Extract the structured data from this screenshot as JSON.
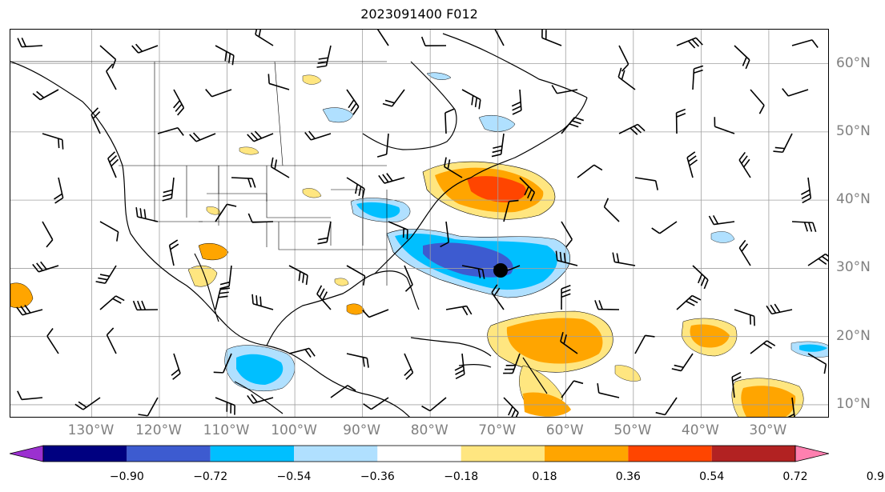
{
  "title": "2023091400 F012",
  "map": {
    "projection": "PlateCarree",
    "lon_range": [
      -142,
      -21
    ],
    "lat_range": [
      8,
      65
    ],
    "lon_ticks": [
      "130°W",
      "120°W",
      "110°W",
      "100°W",
      "90°W",
      "80°W",
      "70°W",
      "60°W",
      "50°W",
      "40°W",
      "30°W"
    ],
    "lat_ticks": [
      "60°N",
      "50°N",
      "40°N",
      "30°N",
      "20°N",
      "10°N"
    ],
    "gridline_color": "#a0a0a0",
    "overlays": [
      "coastlines",
      "country-borders",
      "state-borders",
      "wind-barbs",
      "filled-contours"
    ]
  },
  "colorbar": {
    "orientation": "horizontal",
    "extend": "both",
    "tick_labels": [
      "−0.90",
      "−0.72",
      "−0.54",
      "−0.36",
      "−0.18",
      "0.18",
      "0.36",
      "0.54",
      "0.72",
      "0.90"
    ],
    "colors": [
      "#9b30d0",
      "#000080",
      "#3d5bd0",
      "#00bfff",
      "#b0e0ff",
      "#ffffff",
      "#ffe680",
      "#ffa500",
      "#ff4500",
      "#b22222",
      "#ff80b0"
    ]
  },
  "features": {
    "storm_marker": "tropical-cyclone-center",
    "positive_anomaly_regions": [
      "northeast-us-atlantic",
      "tropical-atlantic-east-caribbean",
      "mexico-west-coast",
      "central-atlantic-east"
    ],
    "negative_anomaly_regions": [
      "southeast-us-atlantic",
      "east-pacific-off-mexico",
      "great-lakes",
      "hudson-bay-area"
    ]
  }
}
